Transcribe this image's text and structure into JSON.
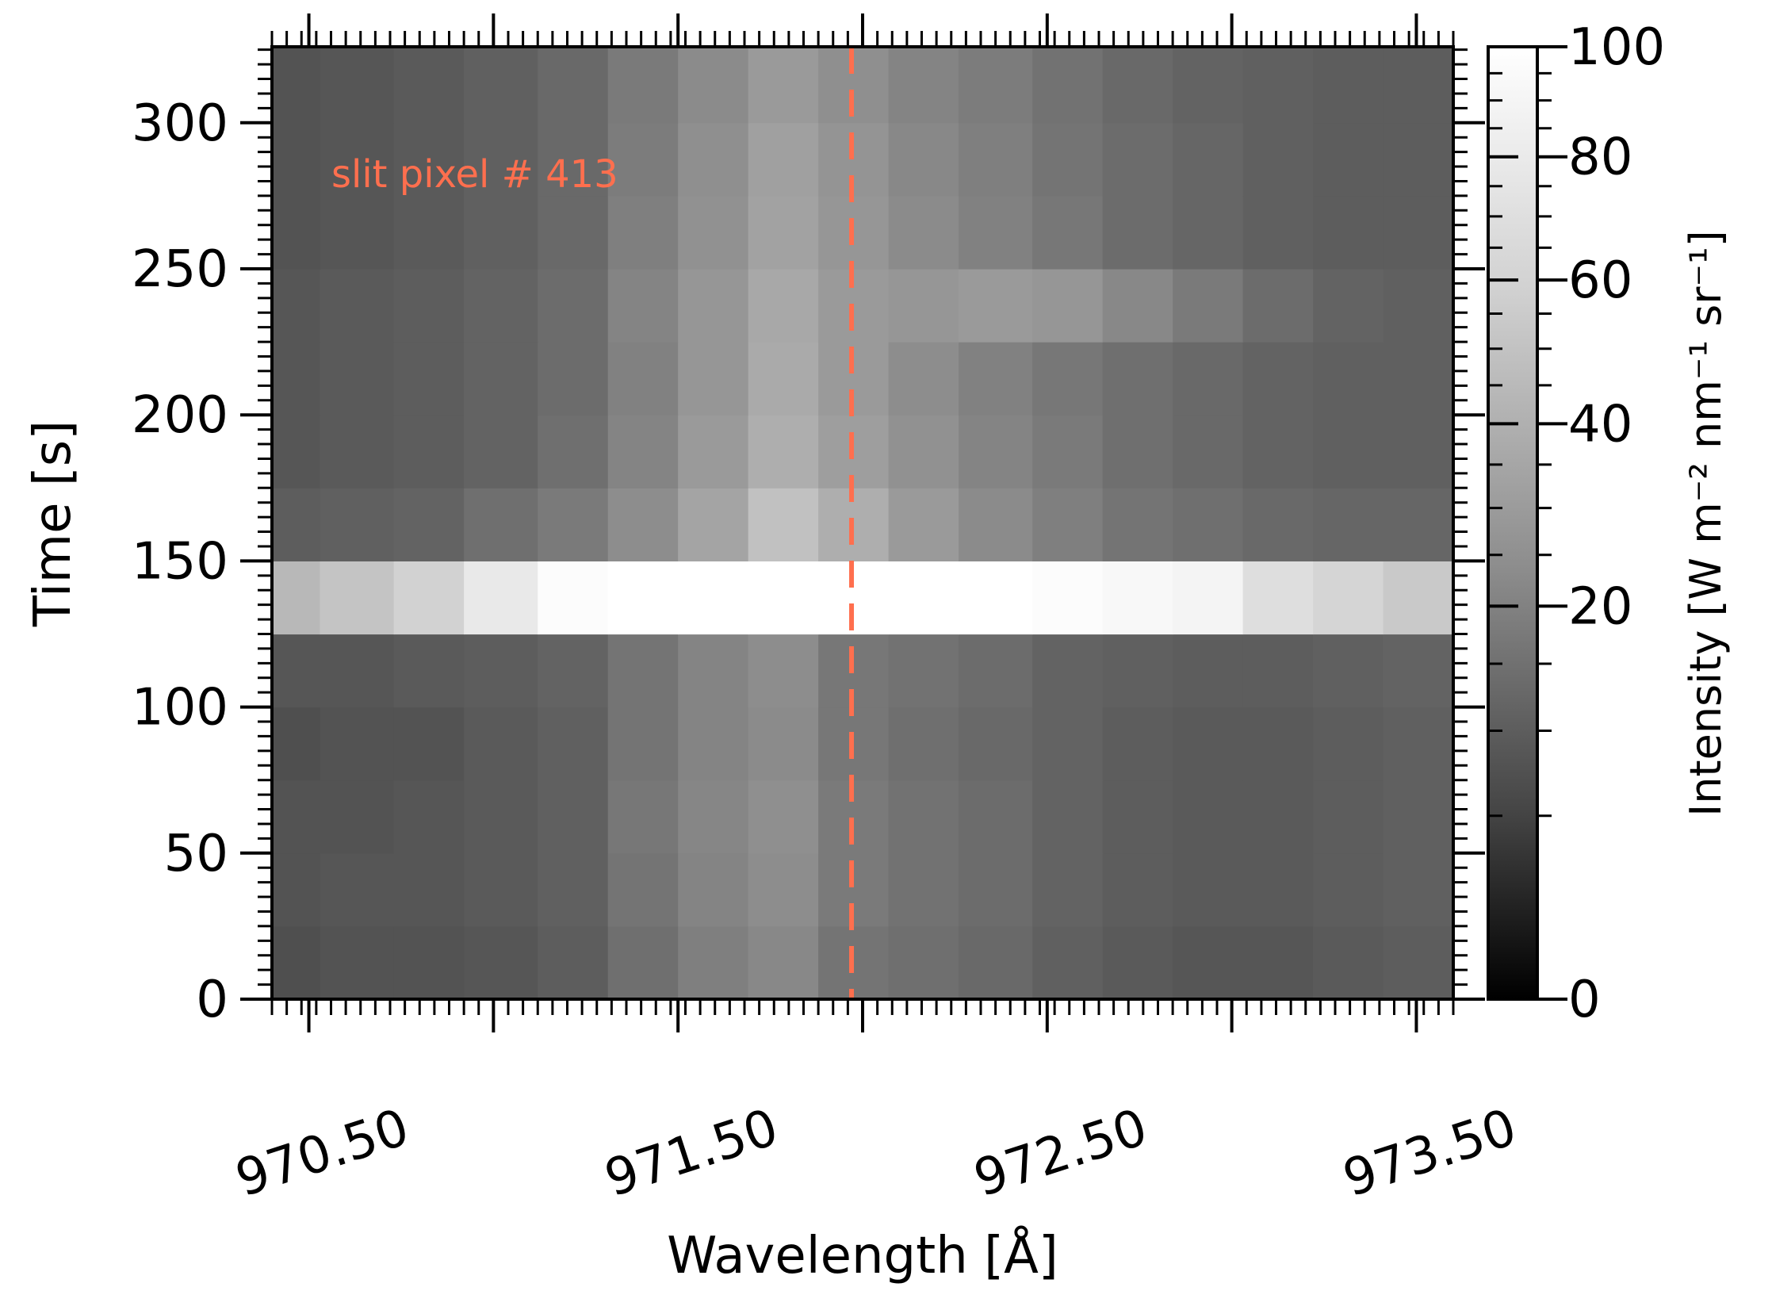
{
  "chart_data": {
    "type": "heatmap",
    "annotation": "slit pixel # 413",
    "xlabel": "Wavelength [Å]",
    "ylabel": "Time [s]",
    "colorbar_label": "Intensity [W m⁻² nm⁻¹ sr⁻¹]",
    "xlim": [
      970.4,
      973.6
    ],
    "ylim": [
      0,
      326
    ],
    "x_ticks": [
      970.5,
      971.5,
      972.5,
      973.5
    ],
    "x_tick_labels": [
      "970.50",
      "971.50",
      "972.50",
      "973.50"
    ],
    "y_ticks": [
      0,
      50,
      100,
      150,
      200,
      250,
      300
    ],
    "y_tick_labels": [
      "0",
      "50",
      "100",
      "150",
      "200",
      "250",
      "300"
    ],
    "colorbar_ticks": [
      0,
      20,
      40,
      60,
      80,
      100
    ],
    "colorbar_tick_labels": [
      "0",
      "20",
      "40",
      "60",
      "80",
      "100"
    ],
    "colorbar_range": [
      0,
      100
    ],
    "colorbar_scale": "nonlinear (compressed at low intensity)",
    "colormap": "gray",
    "reference_line": {
      "x": 971.97,
      "style": "dashed",
      "color": "#ff6f4e"
    },
    "wavelength_bins": [
      970.4,
      970.53,
      970.73,
      970.92,
      971.12,
      971.31,
      971.5,
      971.69,
      971.88,
      972.07,
      972.26,
      972.46,
      972.65,
      972.84,
      973.03,
      973.22,
      973.41,
      973.6
    ],
    "time_bins": [
      0,
      25,
      50,
      75,
      100,
      125,
      150,
      175,
      200,
      225,
      250,
      275,
      300,
      326
    ],
    "intensity": [
      [
        12,
        13,
        13,
        14,
        16,
        22,
        28,
        32,
        24,
        22,
        20,
        17,
        15,
        14,
        14,
        15,
        16
      ],
      [
        13,
        14,
        14,
        15,
        17,
        24,
        30,
        34,
        26,
        23,
        21,
        18,
        16,
        15,
        15,
        16,
        17
      ],
      [
        13,
        13,
        14,
        15,
        17,
        25,
        31,
        35,
        26,
        23,
        21,
        18,
        16,
        15,
        15,
        16,
        17
      ],
      [
        12,
        13,
        13,
        15,
        17,
        24,
        30,
        33,
        25,
        22,
        20,
        18,
        16,
        15,
        15,
        16,
        17
      ],
      [
        14,
        14,
        15,
        16,
        18,
        24,
        30,
        34,
        25,
        23,
        21,
        18,
        17,
        16,
        16,
        17,
        18
      ],
      [
        55,
        62,
        70,
        85,
        98,
        100,
        100,
        100,
        100,
        100,
        100,
        98,
        95,
        92,
        78,
        72,
        65
      ],
      [
        16,
        17,
        18,
        22,
        26,
        34,
        45,
        60,
        50,
        40,
        33,
        28,
        24,
        22,
        20,
        19,
        19
      ],
      [
        14,
        15,
        16,
        18,
        22,
        30,
        40,
        50,
        42,
        36,
        30,
        26,
        22,
        20,
        18,
        17,
        17
      ],
      [
        14,
        15,
        16,
        18,
        21,
        29,
        38,
        48,
        40,
        34,
        29,
        25,
        22,
        20,
        18,
        17,
        17
      ],
      [
        14,
        15,
        16,
        18,
        21,
        30,
        38,
        47,
        40,
        38,
        40,
        38,
        32,
        26,
        21,
        18,
        17
      ],
      [
        13,
        14,
        15,
        17,
        20,
        28,
        36,
        44,
        38,
        33,
        29,
        25,
        21,
        19,
        17,
        16,
        16
      ],
      [
        13,
        14,
        15,
        17,
        20,
        27,
        35,
        43,
        37,
        32,
        28,
        24,
        21,
        19,
        17,
        16,
        16
      ],
      [
        13,
        14,
        15,
        17,
        20,
        26,
        33,
        40,
        35,
        30,
        27,
        23,
        20,
        18,
        17,
        16,
        16
      ]
    ]
  }
}
